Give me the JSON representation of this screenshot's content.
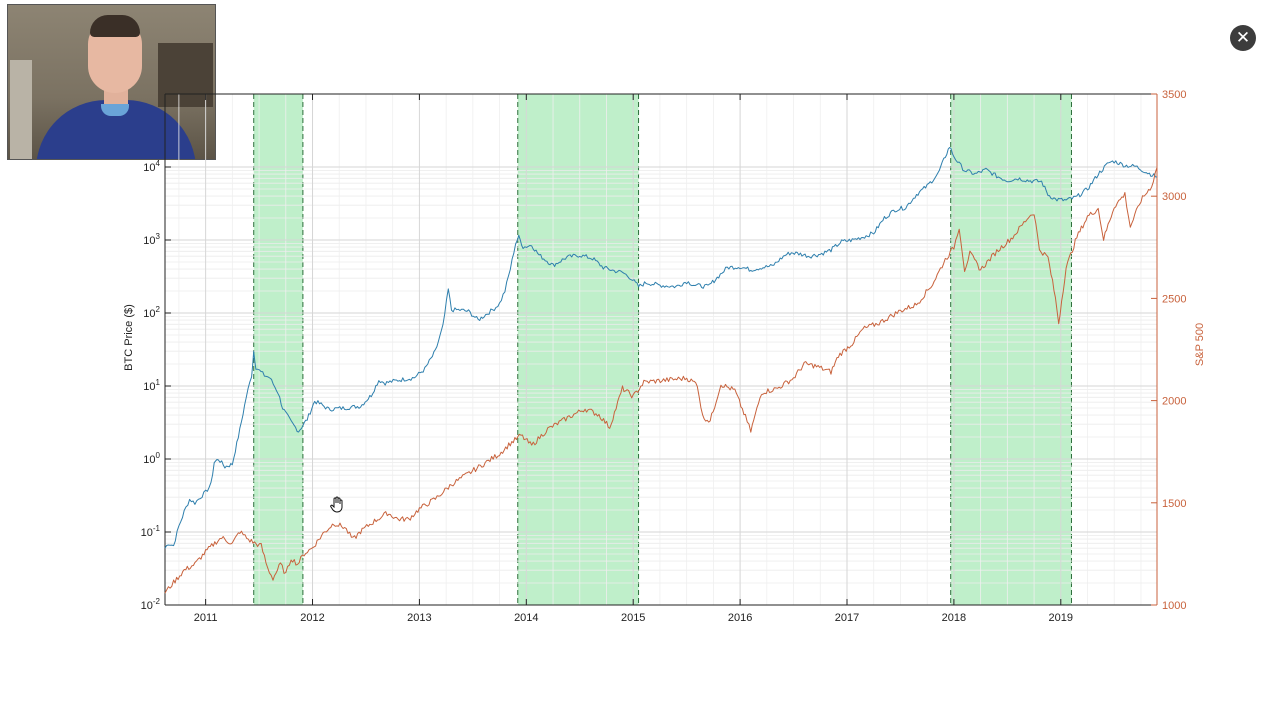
{
  "close_button": {
    "label": "✕",
    "icon": "close-icon"
  },
  "cursor": {
    "icon": "hand-cursor-icon"
  },
  "chart_data": {
    "type": "line",
    "title": "",
    "xlabel": "",
    "x_tick_labels": [
      "2011",
      "2012",
      "2013",
      "2014",
      "2015",
      "2016",
      "2017",
      "2018",
      "2019"
    ],
    "x_range": [
      2010.62,
      2019.9
    ],
    "grid": true,
    "legend": "none",
    "left_axis": {
      "label": "BTC Price ($)",
      "scale": "log",
      "range": [
        0.01,
        100000
      ],
      "ticks": [
        {
          "value": 0.01,
          "base": "10",
          "exp": "-2"
        },
        {
          "value": 0.1,
          "base": "10",
          "exp": "-1"
        },
        {
          "value": 1,
          "base": "10",
          "exp": "0"
        },
        {
          "value": 10,
          "base": "10",
          "exp": "1"
        },
        {
          "value": 100,
          "base": "10",
          "exp": "2"
        },
        {
          "value": 1000,
          "base": "10",
          "exp": "3"
        },
        {
          "value": 10000,
          "base": "10",
          "exp": "4"
        }
      ]
    },
    "right_axis": {
      "label": "S&P 500",
      "scale": "linear",
      "range": [
        1000,
        3500
      ],
      "tick_labels": [
        "1000",
        "1500",
        "2000",
        "2500",
        "3000",
        "3500"
      ],
      "tick_values": [
        1000,
        1500,
        2000,
        2500,
        3000,
        3500
      ]
    },
    "shaded_periods": [
      {
        "start": 2011.45,
        "end": 2011.91
      },
      {
        "start": 2013.92,
        "end": 2015.05
      },
      {
        "start": 2017.97,
        "end": 2019.1
      }
    ],
    "colors": {
      "btc": "#2e7fad",
      "sp500": "#c8623c",
      "shade": "#a9e9b8",
      "right_axis": "#c8623c"
    },
    "series": [
      {
        "axis": "left",
        "points": [
          [
            2010.62,
            0.06
          ],
          [
            2010.65,
            0.07
          ],
          [
            2010.7,
            0.065
          ],
          [
            2010.75,
            0.12
          ],
          [
            2010.8,
            0.19
          ],
          [
            2010.85,
            0.28
          ],
          [
            2010.9,
            0.25
          ],
          [
            2010.95,
            0.3
          ],
          [
            2011.0,
            0.35
          ],
          [
            2011.05,
            0.45
          ],
          [
            2011.08,
            0.9
          ],
          [
            2011.12,
            1.0
          ],
          [
            2011.18,
            0.78
          ],
          [
            2011.25,
            0.85
          ],
          [
            2011.32,
            2.5
          ],
          [
            2011.38,
            7
          ],
          [
            2011.43,
            14
          ],
          [
            2011.45,
            30
          ],
          [
            2011.47,
            18
          ],
          [
            2011.55,
            14
          ],
          [
            2011.6,
            13
          ],
          [
            2011.68,
            8
          ],
          [
            2011.72,
            5
          ],
          [
            2011.8,
            3.2
          ],
          [
            2011.87,
            2.4
          ],
          [
            2011.91,
            2.9
          ],
          [
            2011.95,
            3.5
          ],
          [
            2012.02,
            6.2
          ],
          [
            2012.08,
            5.6
          ],
          [
            2012.15,
            4.8
          ],
          [
            2012.3,
            5.0
          ],
          [
            2012.45,
            5.3
          ],
          [
            2012.55,
            7.5
          ],
          [
            2012.62,
            12
          ],
          [
            2012.68,
            11
          ],
          [
            2012.8,
            12
          ],
          [
            2012.95,
            13
          ],
          [
            2013.05,
            17
          ],
          [
            2013.15,
            30
          ],
          [
            2013.22,
            65
          ],
          [
            2013.27,
            210
          ],
          [
            2013.3,
            110
          ],
          [
            2013.38,
            110
          ],
          [
            2013.46,
            105
          ],
          [
            2013.55,
            80
          ],
          [
            2013.62,
            95
          ],
          [
            2013.7,
            115
          ],
          [
            2013.75,
            135
          ],
          [
            2013.8,
            200
          ],
          [
            2013.85,
            400
          ],
          [
            2013.9,
            900
          ],
          [
            2013.93,
            1100
          ],
          [
            2013.97,
            800
          ],
          [
            2014.05,
            850
          ],
          [
            2014.12,
            620
          ],
          [
            2014.25,
            450
          ],
          [
            2014.38,
            580
          ],
          [
            2014.5,
            620
          ],
          [
            2014.62,
            560
          ],
          [
            2014.72,
            420
          ],
          [
            2014.82,
            380
          ],
          [
            2014.9,
            360
          ],
          [
            2014.98,
            300
          ],
          [
            2015.05,
            230
          ],
          [
            2015.12,
            260
          ],
          [
            2015.25,
            240
          ],
          [
            2015.4,
            230
          ],
          [
            2015.5,
            270
          ],
          [
            2015.58,
            240
          ],
          [
            2015.7,
            230
          ],
          [
            2015.8,
            320
          ],
          [
            2015.88,
            420
          ],
          [
            2016.0,
            430
          ],
          [
            2016.1,
            390
          ],
          [
            2016.2,
            420
          ],
          [
            2016.3,
            440
          ],
          [
            2016.42,
            620
          ],
          [
            2016.48,
            670
          ],
          [
            2016.55,
            650
          ],
          [
            2016.65,
            600
          ],
          [
            2016.75,
            640
          ],
          [
            2016.85,
            730
          ],
          [
            2016.95,
            950
          ],
          [
            2017.05,
            1000
          ],
          [
            2017.15,
            1100
          ],
          [
            2017.25,
            1250
          ],
          [
            2017.35,
            2000
          ],
          [
            2017.45,
            2600
          ],
          [
            2017.55,
            2800
          ],
          [
            2017.65,
            4200
          ],
          [
            2017.75,
            5500
          ],
          [
            2017.85,
            8000
          ],
          [
            2017.92,
            14000
          ],
          [
            2017.96,
            19000
          ],
          [
            2018.0,
            14000
          ],
          [
            2018.05,
            11000
          ],
          [
            2018.1,
            9000
          ],
          [
            2018.2,
            8000
          ],
          [
            2018.3,
            9200
          ],
          [
            2018.4,
            7500
          ],
          [
            2018.5,
            6500
          ],
          [
            2018.6,
            7000
          ],
          [
            2018.7,
            6500
          ],
          [
            2018.82,
            6300
          ],
          [
            2018.88,
            4200
          ],
          [
            2018.95,
            3600
          ],
          [
            2019.05,
            3500
          ],
          [
            2019.15,
            3900
          ],
          [
            2019.25,
            5000
          ],
          [
            2019.35,
            8000
          ],
          [
            2019.45,
            11500
          ],
          [
            2019.5,
            12000
          ],
          [
            2019.6,
            10500
          ],
          [
            2019.7,
            10200
          ],
          [
            2019.8,
            8500
          ],
          [
            2019.9,
            7300
          ]
        ]
      },
      {
        "axis": "right",
        "points": [
          [
            2010.62,
            1060
          ],
          [
            2010.7,
            1110
          ],
          [
            2010.8,
            1170
          ],
          [
            2010.9,
            1200
          ],
          [
            2011.0,
            1260
          ],
          [
            2011.1,
            1310
          ],
          [
            2011.15,
            1330
          ],
          [
            2011.25,
            1300
          ],
          [
            2011.32,
            1360
          ],
          [
            2011.4,
            1320
          ],
          [
            2011.47,
            1300
          ],
          [
            2011.52,
            1290
          ],
          [
            2011.58,
            1180
          ],
          [
            2011.63,
            1130
          ],
          [
            2011.7,
            1200
          ],
          [
            2011.75,
            1150
          ],
          [
            2011.8,
            1230
          ],
          [
            2011.86,
            1200
          ],
          [
            2011.92,
            1250
          ],
          [
            2012.0,
            1280
          ],
          [
            2012.1,
            1350
          ],
          [
            2012.2,
            1400
          ],
          [
            2012.3,
            1380
          ],
          [
            2012.38,
            1320
          ],
          [
            2012.45,
            1360
          ],
          [
            2012.55,
            1400
          ],
          [
            2012.7,
            1450
          ],
          [
            2012.8,
            1420
          ],
          [
            2012.9,
            1420
          ],
          [
            2013.0,
            1470
          ],
          [
            2013.15,
            1520
          ],
          [
            2013.3,
            1590
          ],
          [
            2013.45,
            1640
          ],
          [
            2013.6,
            1690
          ],
          [
            2013.75,
            1740
          ],
          [
            2013.85,
            1790
          ],
          [
            2013.95,
            1830
          ],
          [
            2014.05,
            1780
          ],
          [
            2014.2,
            1860
          ],
          [
            2014.4,
            1920
          ],
          [
            2014.55,
            1960
          ],
          [
            2014.68,
            1930
          ],
          [
            2014.78,
            1870
          ],
          [
            2014.9,
            2060
          ],
          [
            2015.0,
            2020
          ],
          [
            2015.1,
            2090
          ],
          [
            2015.3,
            2100
          ],
          [
            2015.5,
            2110
          ],
          [
            2015.6,
            2080
          ],
          [
            2015.65,
            1920
          ],
          [
            2015.72,
            1900
          ],
          [
            2015.82,
            2080
          ],
          [
            2015.95,
            2050
          ],
          [
            2016.05,
            1920
          ],
          [
            2016.1,
            1850
          ],
          [
            2016.2,
            2040
          ],
          [
            2016.35,
            2060
          ],
          [
            2016.5,
            2110
          ],
          [
            2016.6,
            2180
          ],
          [
            2016.7,
            2170
          ],
          [
            2016.85,
            2140
          ],
          [
            2016.92,
            2220
          ],
          [
            2017.05,
            2280
          ],
          [
            2017.15,
            2350
          ],
          [
            2017.3,
            2380
          ],
          [
            2017.5,
            2440
          ],
          [
            2017.65,
            2470
          ],
          [
            2017.8,
            2570
          ],
          [
            2017.92,
            2690
          ],
          [
            2018.0,
            2750
          ],
          [
            2018.05,
            2850
          ],
          [
            2018.1,
            2640
          ],
          [
            2018.15,
            2720
          ],
          [
            2018.25,
            2640
          ],
          [
            2018.4,
            2730
          ],
          [
            2018.55,
            2800
          ],
          [
            2018.7,
            2900
          ],
          [
            2018.75,
            2920
          ],
          [
            2018.8,
            2740
          ],
          [
            2018.88,
            2700
          ],
          [
            2018.95,
            2500
          ],
          [
            2018.98,
            2380
          ],
          [
            2019.05,
            2650
          ],
          [
            2019.15,
            2800
          ],
          [
            2019.25,
            2900
          ],
          [
            2019.35,
            2940
          ],
          [
            2019.4,
            2790
          ],
          [
            2019.5,
            2950
          ],
          [
            2019.6,
            3010
          ],
          [
            2019.65,
            2850
          ],
          [
            2019.75,
            2980
          ],
          [
            2019.85,
            3050
          ],
          [
            2019.9,
            3140
          ]
        ]
      }
    ]
  }
}
